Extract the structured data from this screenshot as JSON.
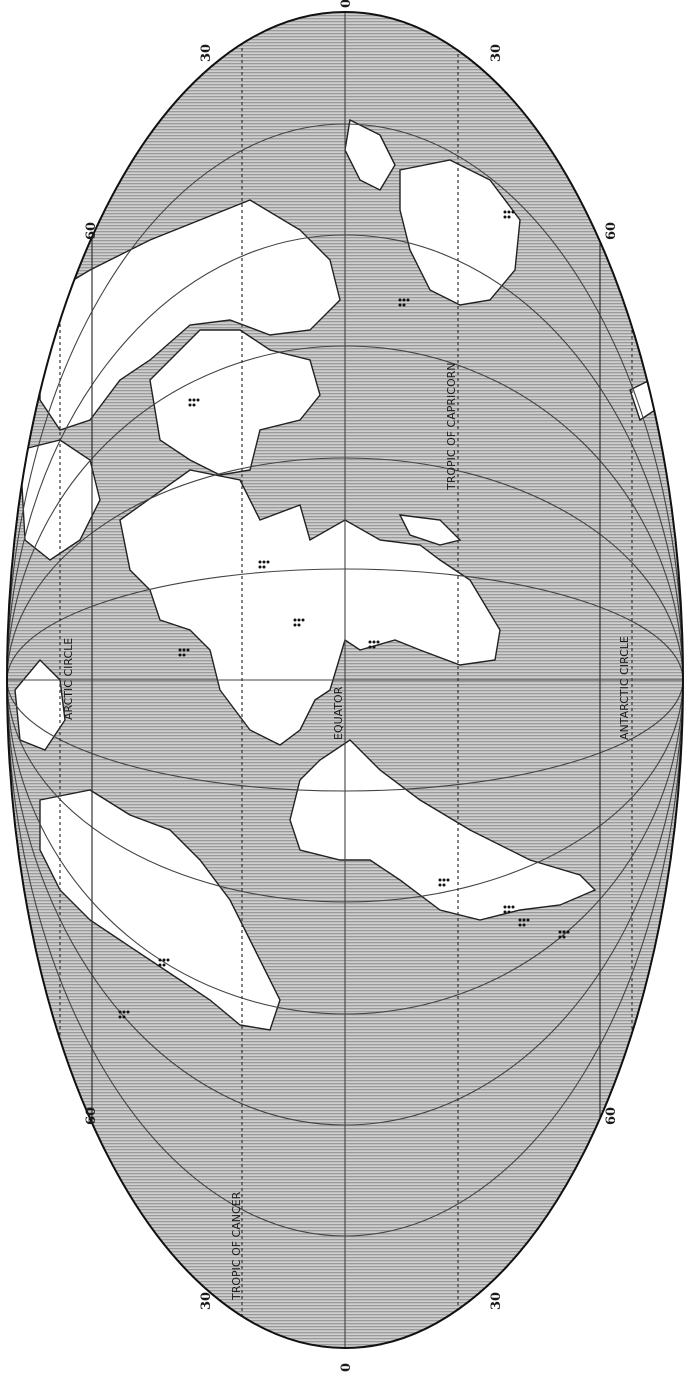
{
  "map": {
    "projection": "Mollweide (rotated 90 degrees)",
    "colors": {
      "ocean": "#c8c8c8",
      "hatch": "#9a9a9a",
      "land": "#ffffff",
      "graticule": "#444444",
      "coast": "#222222",
      "dots": "#111111"
    },
    "labels": {
      "arctic_circle": "ARCTIC CIRCLE",
      "tropic_of_cancer": "TROPIC OF CANCER",
      "equator": "EQUATOR",
      "tropic_of_capricorn": "TROPIC OF CAPRICORN",
      "antarctic_circle": "ANTARCTIC CIRCLE"
    },
    "degree_labels": {
      "top_center": "0",
      "top_left": "30",
      "top_right": "30",
      "upper_left": "60",
      "upper_right": "60",
      "lower_left": "60",
      "lower_right": "60",
      "bottom_left": "30",
      "bottom_right": "30",
      "bottom_center": "0"
    }
  }
}
